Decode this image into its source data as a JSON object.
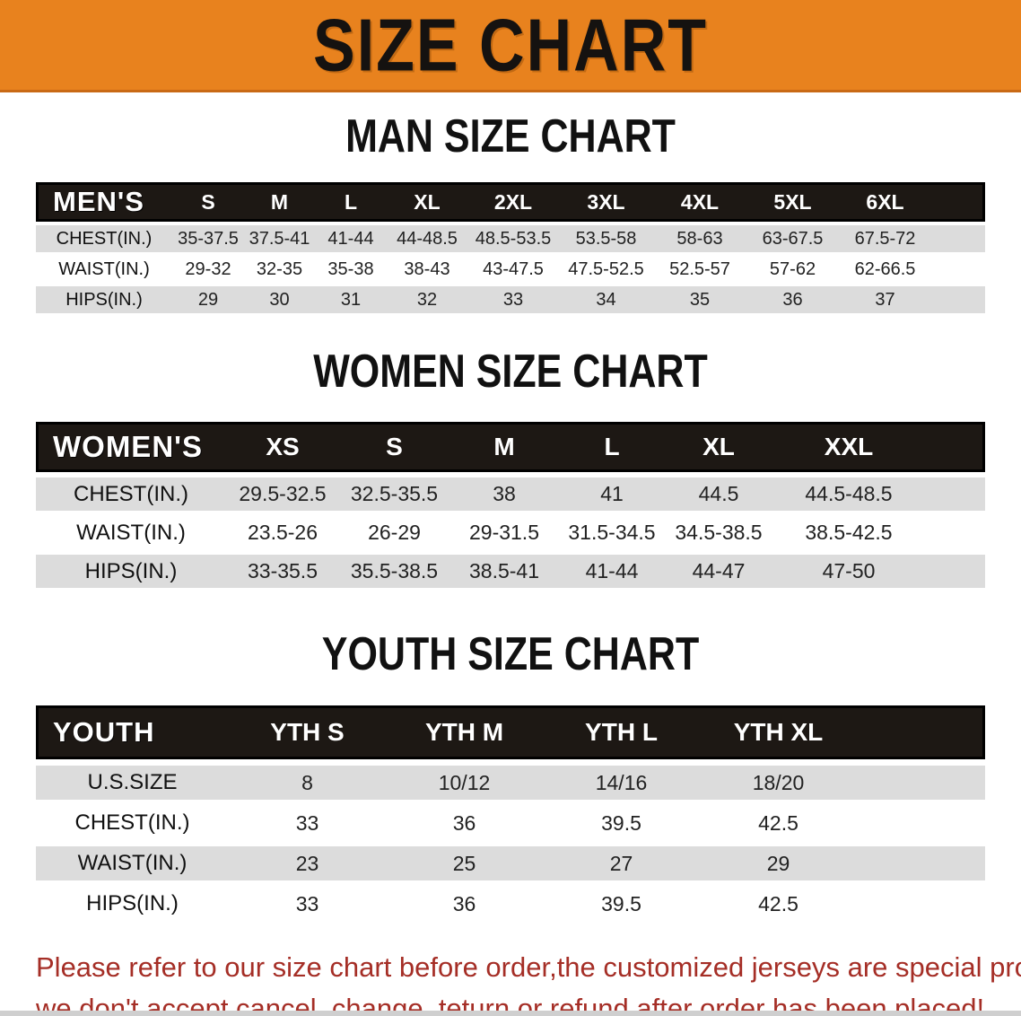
{
  "banner": {
    "title": "SIZE CHART",
    "bg_color": "#E8821E"
  },
  "colors": {
    "header_bar": "#1d1814",
    "row_shade": "#DCDCDC",
    "disclaimer_red": "#A52E26"
  },
  "sections": [
    {
      "heading": "MAN SIZE CHART",
      "table": {
        "header_label": "MEN'S",
        "columns": [
          "S",
          "M",
          "L",
          "XL",
          "2XL",
          "3XL",
          "4XL",
          "5XL",
          "6XL"
        ],
        "rows": [
          {
            "label": "CHEST(IN.)",
            "values": [
              "35-37.5",
              "37.5-41",
              "41-44",
              "44-48.5",
              "48.5-53.5",
              "53.5-58",
              "58-63",
              "63-67.5",
              "67.5-72"
            ]
          },
          {
            "label": "WAIST(IN.)",
            "values": [
              "29-32",
              "32-35",
              "35-38",
              "38-43",
              "43-47.5",
              "47.5-52.5",
              "52.5-57",
              "57-62",
              "62-66.5"
            ]
          },
          {
            "label": "HIPS(IN.)",
            "values": [
              "29",
              "30",
              "31",
              "32",
              "33",
              "34",
              "35",
              "36",
              "37"
            ]
          }
        ]
      }
    },
    {
      "heading": "WOMEN SIZE CHART",
      "table": {
        "header_label": "WOMEN'S",
        "columns": [
          "XS",
          "S",
          "M",
          "L",
          "XL",
          "XXL"
        ],
        "rows": [
          {
            "label": "CHEST(IN.)",
            "values": [
              "29.5-32.5",
              "32.5-35.5",
              "38",
              "41",
              "44.5",
              "44.5-48.5"
            ]
          },
          {
            "label": "WAIST(IN.)",
            "values": [
              "23.5-26",
              "26-29",
              "29-31.5",
              "31.5-34.5",
              "34.5-38.5",
              "38.5-42.5"
            ]
          },
          {
            "label": "HIPS(IN.)",
            "values": [
              "33-35.5",
              "35.5-38.5",
              "38.5-41",
              "41-44",
              "44-47",
              "47-50"
            ]
          }
        ]
      }
    },
    {
      "heading": "YOUTH SIZE CHART",
      "table": {
        "header_label": "YOUTH",
        "columns": [
          "YTH S",
          "YTH M",
          "YTH L",
          "YTH XL"
        ],
        "rows": [
          {
            "label": "U.S.SIZE",
            "values": [
              "8",
              "10/12",
              "14/16",
              "18/20"
            ]
          },
          {
            "label": "CHEST(IN.)",
            "values": [
              "33",
              "36",
              "39.5",
              "42.5"
            ]
          },
          {
            "label": "WAIST(IN.)",
            "values": [
              "23",
              "25",
              "27",
              "29"
            ]
          },
          {
            "label": "HIPS(IN.)",
            "values": [
              "33",
              "36",
              "39.5",
              "42.5"
            ]
          }
        ]
      }
    }
  ],
  "disclaimer": {
    "line1": "Please refer to our size chart before order,the customized jerseys are special products,",
    "line2": "we don't accept cancel, change, teturn or refund after order has been placed!"
  }
}
